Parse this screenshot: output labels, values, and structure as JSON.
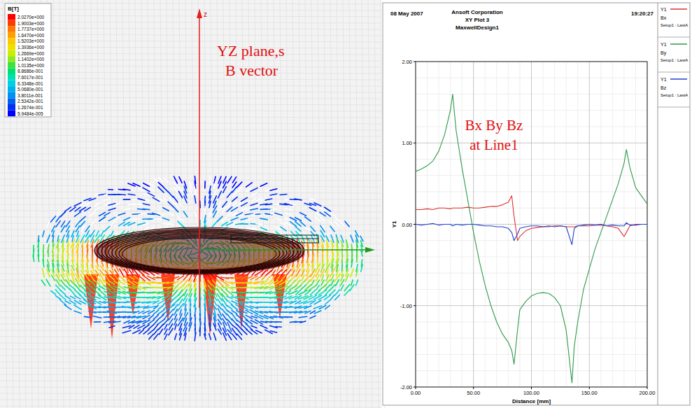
{
  "field_plot": {
    "quantity_label": "B[T]",
    "annotations": [
      "YZ plane,s",
      "B vector"
    ],
    "axis_label": "z",
    "color_scale": {
      "ticks": [
        {
          "value": 2.027,
          "label": "2.0270e+000"
        },
        {
          "value": 1.9003,
          "label": "1.9003e+000"
        },
        {
          "value": 1.7737,
          "label": "1.7737e+000"
        },
        {
          "value": 1.647,
          "label": "1.6470e+000"
        },
        {
          "value": 1.5203,
          "label": "1.5203e+000"
        },
        {
          "value": 1.3936,
          "label": "1.3936e+000"
        },
        {
          "value": 1.2669,
          "label": "1.2669e+000"
        },
        {
          "value": 1.1402,
          "label": "1.1402e+000"
        },
        {
          "value": 1.0135,
          "label": "1.0135e+000"
        },
        {
          "value": 0.88686,
          "label": "8.8686e-001"
        },
        {
          "value": 0.76017,
          "label": "7.6017e-001"
        },
        {
          "value": 0.63348,
          "label": "6.3348e-001"
        },
        {
          "value": 0.5068,
          "label": "5.0680e-001"
        },
        {
          "value": 0.38011,
          "label": "3.8011e-001"
        },
        {
          "value": 0.25342,
          "label": "2.5342e-001"
        },
        {
          "value": 0.12674,
          "label": "1.2674e-001"
        },
        {
          "value": 5.9484e-05,
          "label": "5.9484e-005"
        }
      ]
    }
  },
  "report_header": {
    "date": "08 May 2007",
    "company": "Ansoft Corporation",
    "time": "19:20:27"
  },
  "legend_panel": {
    "trace_label": "Y1",
    "setup": "Setup1 : LastA"
  },
  "chart_data": {
    "type": "line",
    "title": "XY Plot 3",
    "subtitle": "MaxwellDesign1",
    "annotations": [
      "Bx By Bz",
      "at Line1"
    ],
    "x_label": "Distance [mm]",
    "y_label": "Y1",
    "x": [
      0,
      5,
      10,
      15,
      20,
      25,
      30,
      32,
      35,
      40,
      45,
      50,
      55,
      60,
      65,
      70,
      75,
      80,
      83,
      85,
      88,
      90,
      95,
      100,
      105,
      110,
      115,
      120,
      125,
      130,
      135,
      137,
      140,
      145,
      150,
      155,
      160,
      165,
      170,
      175,
      180,
      182,
      185,
      190,
      195,
      200
    ],
    "series": [
      {
        "name": "Bx",
        "color": "#e03030",
        "values": [
          0.18,
          0.18,
          0.19,
          0.18,
          0.2,
          0.2,
          0.19,
          0.2,
          0.2,
          0.2,
          0.21,
          0.2,
          0.2,
          0.21,
          0.22,
          0.22,
          0.24,
          0.27,
          0.35,
          0.1,
          -0.2,
          -0.15,
          -0.08,
          -0.05,
          -0.04,
          -0.03,
          -0.03,
          -0.02,
          -0.02,
          -0.03,
          -0.03,
          -0.03,
          -0.02,
          -0.02,
          -0.02,
          -0.01,
          -0.01,
          -0.02,
          -0.03,
          -0.05,
          -0.15,
          -0.1,
          -0.02,
          0,
          0,
          0
        ]
      },
      {
        "name": "By",
        "color": "#2e9a4a",
        "values": [
          0.65,
          0.68,
          0.72,
          0.78,
          0.9,
          1.1,
          1.4,
          1.6,
          1.15,
          0.7,
          0.3,
          -0.1,
          -0.45,
          -0.75,
          -1.0,
          -1.2,
          -1.35,
          -1.45,
          -1.55,
          -1.72,
          -1.3,
          -1.05,
          -0.95,
          -0.88,
          -0.85,
          -0.84,
          -0.85,
          -0.9,
          -1.0,
          -1.3,
          -1.95,
          -1.5,
          -1.2,
          -0.8,
          -0.55,
          -0.3,
          -0.1,
          0.1,
          0.3,
          0.5,
          0.75,
          0.92,
          0.7,
          0.45,
          0.35,
          0.25
        ]
      },
      {
        "name": "Bz",
        "color": "#2040d0",
        "values": [
          0,
          -0.01,
          0,
          0.01,
          -0.01,
          0,
          0,
          -0.02,
          0,
          -0.01,
          0,
          0,
          -0.01,
          -0.02,
          -0.02,
          -0.03,
          -0.03,
          -0.05,
          -0.1,
          -0.2,
          -0.12,
          -0.05,
          -0.03,
          -0.02,
          -0.02,
          -0.03,
          -0.02,
          -0.03,
          -0.02,
          -0.03,
          -0.25,
          -0.05,
          -0.02,
          -0.01,
          0,
          -0.01,
          0,
          -0.02,
          -0.01,
          -0.02,
          -0.02,
          0.02,
          -0.01,
          -0.01,
          0,
          0
        ]
      }
    ],
    "xlim": [
      0,
      200
    ],
    "ylim": [
      -2,
      2
    ],
    "xticks": [
      {
        "value": 0,
        "label": "0.00"
      },
      {
        "value": 50,
        "label": "50.00"
      },
      {
        "value": 100,
        "label": "100.00"
      },
      {
        "value": 150,
        "label": "150.00"
      },
      {
        "value": 200,
        "label": "200.00"
      }
    ],
    "yticks": [
      {
        "value": -2,
        "label": "-2.00"
      },
      {
        "value": -1,
        "label": "-1.00"
      },
      {
        "value": 0,
        "label": "0.00"
      },
      {
        "value": 1,
        "label": "1.00"
      },
      {
        "value": 2,
        "label": "2.00"
      }
    ],
    "grid": true,
    "legend": "right"
  }
}
